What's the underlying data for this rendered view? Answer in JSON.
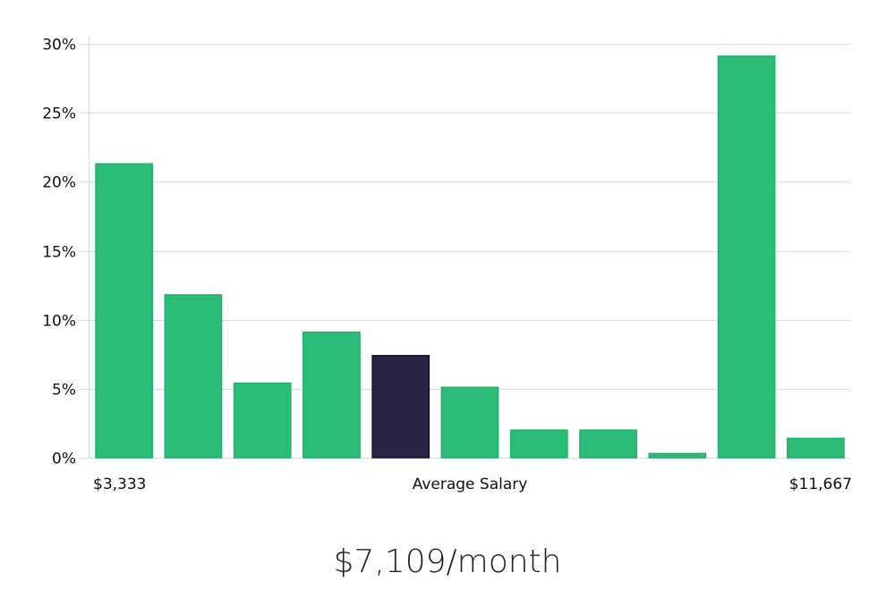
{
  "chart_data": {
    "type": "bar",
    "title": "",
    "xlabel": "Average Salary",
    "ylabel": "",
    "ylim": [
      0,
      30
    ],
    "yticks": [
      "0%",
      "5%",
      "10%",
      "15%",
      "20%",
      "25%",
      "30%"
    ],
    "ytick_values": [
      0,
      5,
      10,
      15,
      20,
      25,
      30
    ],
    "x_range_labels": {
      "min": "$3,333",
      "max": "$11,667"
    },
    "values": [
      21.3,
      11.8,
      5.4,
      9.1,
      7.4,
      5.1,
      2.0,
      2.0,
      0.3,
      29.1,
      1.4
    ],
    "highlight_index": 4,
    "grid": true,
    "colors": {
      "bar": "#2bbd77",
      "highlight": "#272444",
      "grid": "#dddddd"
    }
  },
  "summary": "$7,109/month"
}
